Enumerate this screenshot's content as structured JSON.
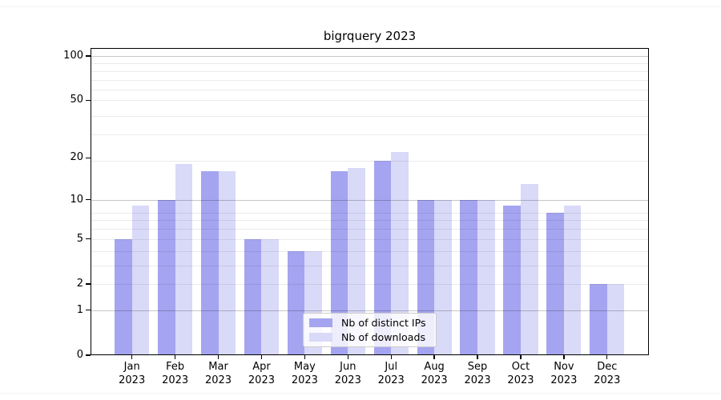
{
  "figure": {
    "background": "#ffffff"
  },
  "chart_data": {
    "type": "bar",
    "title": "bigrquery 2023",
    "categories": [
      "Jan",
      "Feb",
      "Mar",
      "Apr",
      "May",
      "Jun",
      "Jul",
      "Aug",
      "Sep",
      "Oct",
      "Nov",
      "Dec"
    ],
    "category_year": "2023",
    "series": [
      {
        "name": "Nb of distinct IPs",
        "color": "#a4a4f0",
        "values": [
          5,
          10,
          16,
          5,
          4,
          16,
          19,
          10,
          10,
          9,
          8,
          2
        ]
      },
      {
        "name": "Nb of downloads",
        "color": "#d9d9f8",
        "values": [
          9,
          18,
          16,
          5,
          4,
          17,
          22,
          10,
          10,
          13,
          9,
          2
        ]
      }
    ],
    "xlabel": "",
    "ylabel": "",
    "yscale": "log1p",
    "yticks": [
      0,
      1,
      2,
      5,
      10,
      20,
      50,
      100
    ],
    "ylim": [
      0,
      113
    ],
    "grid": {
      "on": true,
      "major_values": [
        1,
        10,
        100
      ],
      "minor_values": [
        2,
        3,
        4,
        5,
        6,
        7,
        8,
        19,
        29,
        39,
        50,
        59,
        69,
        79,
        89
      ],
      "major_color": "rgba(0,0,0,0.22)",
      "minor_color": "rgba(0,0,0,0.08)"
    },
    "legend": {
      "position": "inside-lower-center",
      "border_color": "#cccccc",
      "background": "rgba(255,255,255,0.8)"
    },
    "axis_color": "#000000",
    "text_color": "#000000"
  }
}
